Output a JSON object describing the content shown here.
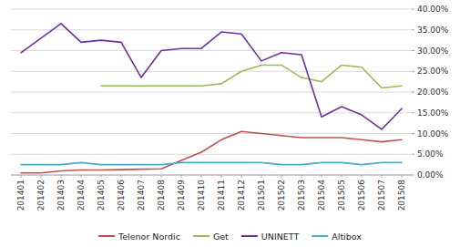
{
  "chart_data": {
    "type": "line",
    "categories": [
      "201401",
      "201402",
      "201403",
      "201404",
      "201405",
      "201406",
      "201407",
      "201408",
      "201409",
      "201410",
      "201411",
      "201412",
      "201501",
      "201502",
      "201503",
      "201504",
      "201505",
      "201506",
      "201507",
      "201508"
    ],
    "series": [
      {
        "name": "Telenor Nordic",
        "color": "#C0504D",
        "values": [
          0.5,
          0.5,
          1.0,
          1.2,
          1.2,
          1.3,
          1.4,
          1.5,
          3.5,
          5.5,
          8.5,
          10.5,
          10.0,
          9.5,
          9.0,
          9.0,
          9.0,
          8.5,
          8.0,
          8.5
        ]
      },
      {
        "name": "Get",
        "color": "#9BBB59",
        "values": [
          null,
          null,
          null,
          null,
          21.5,
          21.5,
          21.5,
          21.5,
          21.5,
          21.5,
          22.0,
          25.0,
          26.5,
          26.5,
          23.5,
          22.5,
          26.5,
          26.0,
          21.0,
          21.5
        ]
      },
      {
        "name": "UNINETT",
        "color": "#7030A0",
        "values": [
          29.5,
          33.0,
          36.5,
          32.0,
          32.5,
          32.0,
          23.5,
          30.0,
          30.5,
          30.5,
          34.5,
          34.0,
          27.5,
          29.5,
          29.0,
          14.0,
          16.5,
          14.5,
          11.0,
          16.0
        ]
      },
      {
        "name": "Altibox",
        "color": "#4BACC6",
        "values": [
          2.5,
          2.5,
          2.5,
          3.0,
          2.5,
          2.5,
          2.5,
          2.5,
          3.0,
          3.0,
          3.0,
          3.0,
          3.0,
          2.5,
          2.5,
          3.0,
          3.0,
          2.5,
          3.0,
          3.0
        ]
      }
    ],
    "ylim": [
      0,
      40
    ],
    "yticks": [
      {
        "value": 0,
        "label": "0.00%"
      },
      {
        "value": 5,
        "label": "5.00%"
      },
      {
        "value": 10,
        "label": "10.00%"
      },
      {
        "value": 15,
        "label": "15.00%"
      },
      {
        "value": 20,
        "label": "20.00%"
      },
      {
        "value": 25,
        "label": "25.00%"
      },
      {
        "value": 30,
        "label": "30.00%"
      },
      {
        "value": 35,
        "label": "35.00%"
      },
      {
        "value": 40,
        "label": "40.00%"
      }
    ],
    "grid": true,
    "legend": "bottom"
  }
}
